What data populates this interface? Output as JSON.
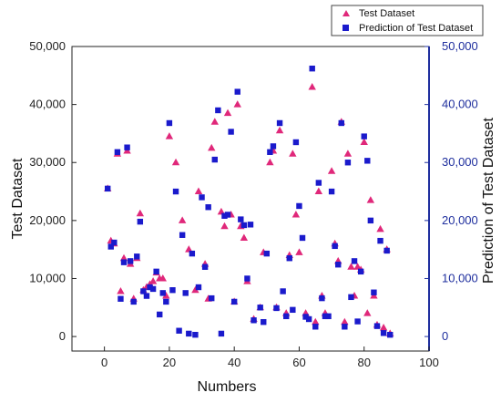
{
  "chart_data": {
    "type": "scatter",
    "xlabel": "Numbers",
    "ylabel_left": "Test Dataset",
    "ylabel_right": "Prediction of Test Dataset",
    "xlim": [
      -10,
      100
    ],
    "ylim": [
      -2500,
      50000
    ],
    "x_ticks": [
      0,
      20,
      40,
      60,
      80,
      100
    ],
    "x_tick_labels": [
      "0",
      "20",
      "40",
      "60",
      "80",
      "100"
    ],
    "y_ticks": [
      0,
      10000,
      20000,
      30000,
      40000,
      50000
    ],
    "y_tick_labels_left": [
      "0",
      "10,000",
      "20,000",
      "30,000",
      "40,000",
      "50,000"
    ],
    "y_tick_labels_right": [
      "0",
      "10,000",
      "20,000",
      "30,000",
      "40,000",
      "50,000"
    ],
    "grid": false,
    "legend_position": "top-right",
    "colors": {
      "test": "#e0287a",
      "prediction": "#1a1acc",
      "right_axis": "#1f2f9e"
    },
    "series": [
      {
        "name": "Test Dataset",
        "marker": "triangle",
        "points": [
          [
            1,
            25500
          ],
          [
            2,
            16500
          ],
          [
            3,
            16000
          ],
          [
            4,
            31500
          ],
          [
            5,
            7800
          ],
          [
            6,
            13500
          ],
          [
            7,
            32000
          ],
          [
            8,
            12500
          ],
          [
            9,
            6500
          ],
          [
            10,
            13500
          ],
          [
            11,
            21200
          ],
          [
            12,
            8000
          ],
          [
            13,
            8500
          ],
          [
            14,
            9000
          ],
          [
            15,
            9500
          ],
          [
            16,
            11000
          ],
          [
            17,
            10000
          ],
          [
            18,
            10000
          ],
          [
            19,
            7000
          ],
          [
            20,
            34500
          ],
          [
            22,
            30000
          ],
          [
            24,
            20000
          ],
          [
            26,
            15000
          ],
          [
            28,
            8000
          ],
          [
            29,
            25000
          ],
          [
            31,
            12500
          ],
          [
            32,
            6500
          ],
          [
            33,
            32500
          ],
          [
            34,
            37000
          ],
          [
            36,
            21500
          ],
          [
            37,
            19000
          ],
          [
            38,
            38500
          ],
          [
            39,
            21000
          ],
          [
            40,
            6000
          ],
          [
            41,
            40000
          ],
          [
            42,
            19000
          ],
          [
            43,
            17000
          ],
          [
            44,
            9500
          ],
          [
            46,
            3000
          ],
          [
            48,
            5000
          ],
          [
            49,
            14500
          ],
          [
            51,
            30000
          ],
          [
            52,
            32000
          ],
          [
            53,
            5000
          ],
          [
            54,
            35500
          ],
          [
            56,
            4000
          ],
          [
            57,
            14000
          ],
          [
            58,
            31500
          ],
          [
            59,
            21000
          ],
          [
            60,
            14500
          ],
          [
            62,
            4000
          ],
          [
            64,
            43000
          ],
          [
            65,
            2500
          ],
          [
            66,
            25000
          ],
          [
            67,
            7000
          ],
          [
            68,
            4000
          ],
          [
            70,
            28500
          ],
          [
            71,
            16000
          ],
          [
            72,
            13000
          ],
          [
            73,
            37000
          ],
          [
            74,
            2500
          ],
          [
            75,
            31500
          ],
          [
            76,
            12000
          ],
          [
            77,
            7000
          ],
          [
            78,
            12000
          ],
          [
            79,
            11500
          ],
          [
            80,
            33500
          ],
          [
            81,
            4000
          ],
          [
            82,
            23500
          ],
          [
            83,
            7000
          ],
          [
            84,
            2000
          ],
          [
            85,
            18500
          ],
          [
            86,
            1500
          ],
          [
            87,
            15000
          ],
          [
            88,
            500
          ]
        ]
      },
      {
        "name": "Prediction of Test Dataset",
        "marker": "square",
        "points": [
          [
            1,
            25500
          ],
          [
            2,
            15500
          ],
          [
            3,
            16200
          ],
          [
            4,
            31800
          ],
          [
            5,
            6500
          ],
          [
            6,
            12800
          ],
          [
            7,
            32600
          ],
          [
            8,
            13000
          ],
          [
            9,
            6000
          ],
          [
            10,
            13800
          ],
          [
            11,
            19800
          ],
          [
            12,
            7800
          ],
          [
            13,
            7000
          ],
          [
            14,
            8500
          ],
          [
            15,
            8200
          ],
          [
            16,
            11200
          ],
          [
            17,
            3800
          ],
          [
            18,
            7500
          ],
          [
            19,
            6000
          ],
          [
            20,
            36800
          ],
          [
            21,
            8000
          ],
          [
            22,
            25000
          ],
          [
            23,
            1000
          ],
          [
            24,
            17500
          ],
          [
            25,
            7500
          ],
          [
            26,
            500
          ],
          [
            27,
            14300
          ],
          [
            28,
            300
          ],
          [
            29,
            8500
          ],
          [
            30,
            24000
          ],
          [
            31,
            12000
          ],
          [
            32,
            22300
          ],
          [
            33,
            6600
          ],
          [
            34,
            30500
          ],
          [
            35,
            39000
          ],
          [
            36,
            500
          ],
          [
            37,
            20800
          ],
          [
            38,
            21000
          ],
          [
            39,
            35300
          ],
          [
            40,
            6000
          ],
          [
            41,
            42200
          ],
          [
            42,
            20200
          ],
          [
            43,
            19200
          ],
          [
            44,
            10000
          ],
          [
            45,
            19300
          ],
          [
            46,
            2800
          ],
          [
            48,
            5000
          ],
          [
            49,
            2500
          ],
          [
            50,
            14300
          ],
          [
            51,
            31800
          ],
          [
            52,
            32800
          ],
          [
            53,
            4900
          ],
          [
            54,
            36800
          ],
          [
            55,
            7800
          ],
          [
            56,
            3500
          ],
          [
            57,
            13500
          ],
          [
            58,
            4600
          ],
          [
            59,
            33500
          ],
          [
            60,
            22500
          ],
          [
            61,
            17000
          ],
          [
            62,
            3400
          ],
          [
            63,
            3000
          ],
          [
            64,
            46200
          ],
          [
            65,
            1700
          ],
          [
            66,
            26500
          ],
          [
            67,
            6600
          ],
          [
            68,
            3500
          ],
          [
            69,
            3500
          ],
          [
            70,
            25000
          ],
          [
            71,
            15600
          ],
          [
            72,
            12400
          ],
          [
            73,
            36800
          ],
          [
            74,
            1700
          ],
          [
            75,
            30000
          ],
          [
            76,
            6800
          ],
          [
            77,
            13000
          ],
          [
            78,
            2600
          ],
          [
            79,
            11200
          ],
          [
            80,
            34500
          ],
          [
            81,
            30300
          ],
          [
            82,
            20000
          ],
          [
            83,
            7600
          ],
          [
            84,
            1800
          ],
          [
            85,
            16500
          ],
          [
            86,
            600
          ],
          [
            87,
            14800
          ],
          [
            88,
            300
          ]
        ]
      }
    ]
  }
}
